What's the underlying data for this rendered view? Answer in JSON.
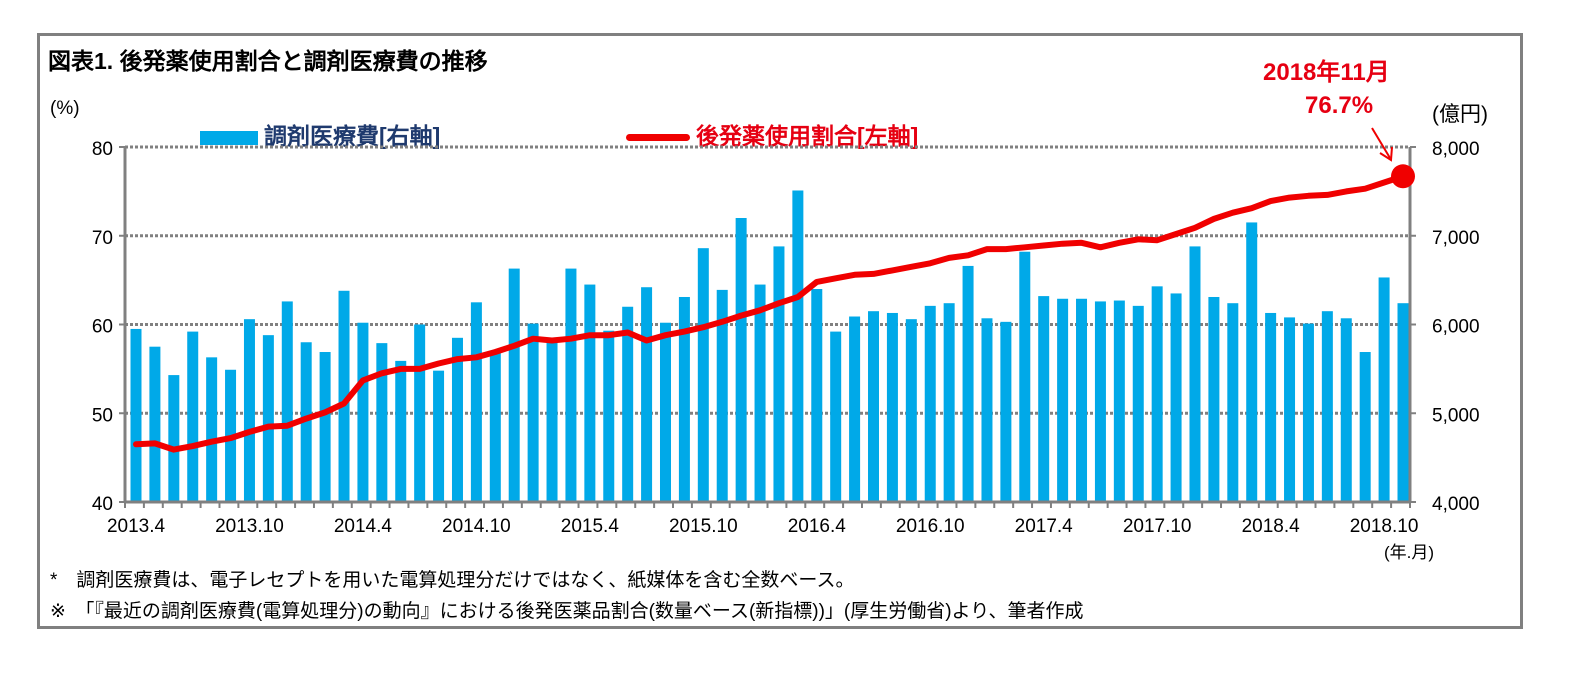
{
  "title": "図表1. 後発薬使用割合と調剤医療費の推移",
  "notes": [
    "*　調剤医療費は、電子レセプトを用いた電算処理分だけではなく、紙媒体を含む全数ベース。",
    "※　「『最近の調剤医療費(電算処理分)の動向』における後発医薬品割合(数量ベース(新指標))」(厚生労働省)より、筆者作成"
  ],
  "annotation": {
    "date": "2018年11月",
    "value": "76.7%"
  },
  "colors": {
    "bar": "#00a9e8",
    "line": "#f00000",
    "bar_legend_text": "#1f3a6e",
    "line_legend_text": "#e60012",
    "grid": "#808080"
  },
  "chart_data": {
    "type": "bar+line",
    "title": "図表1. 後発薬使用割合と調剤医療費の推移",
    "legend_placement": "top",
    "grid": true,
    "xlabel": "(年.月)",
    "ylabel_left": "(%)",
    "ylabel_right": "(億円)",
    "ylim_left": [
      40,
      80
    ],
    "ylim_right": [
      4000,
      8000
    ],
    "yticks_left": [
      "40",
      "50",
      "60",
      "70",
      "80"
    ],
    "yticks_right": [
      "4,000",
      "5,000",
      "6,000",
      "7,000",
      "8,000"
    ],
    "xtick_labels": [
      "2013.4",
      "2013.10",
      "2014.4",
      "2014.10",
      "2015.4",
      "2015.10",
      "2016.4",
      "2016.10",
      "2017.4",
      "2017.10",
      "2018.4",
      "2018.10"
    ],
    "x_start": "2013.4",
    "x_end": "2018.11",
    "series": [
      {
        "name": "調剤医療費[右軸]",
        "type": "bar",
        "axis": "right",
        "values": [
          5950,
          5750,
          5430,
          5920,
          5630,
          5490,
          6060,
          5880,
          6260,
          5800,
          5690,
          6380,
          6020,
          5790,
          5590,
          6000,
          5480,
          5850,
          6250,
          5680,
          6630,
          6010,
          5810,
          6630,
          6450,
          5930,
          6200,
          6420,
          6020,
          6310,
          6860,
          6390,
          7200,
          6450,
          6880,
          7510,
          6400,
          5920,
          6090,
          6150,
          6130,
          6060,
          6210,
          6240,
          6660,
          6070,
          6030,
          6820,
          6320,
          6290,
          6290,
          6260,
          6270,
          6210,
          6430,
          6350,
          6880,
          6310,
          6240,
          7150,
          6130,
          6080,
          6010,
          6150,
          6070,
          5690,
          6530,
          6240
        ]
      },
      {
        "name": "後発薬使用割合[左軸]",
        "type": "line",
        "axis": "left",
        "values": [
          46.5,
          46.6,
          45.9,
          46.3,
          46.8,
          47.2,
          47.9,
          48.5,
          48.6,
          49.4,
          50.1,
          51.1,
          53.7,
          54.5,
          55.0,
          55.0,
          55.6,
          56.1,
          56.3,
          56.9,
          57.6,
          58.4,
          58.2,
          58.4,
          58.8,
          58.8,
          59.1,
          58.2,
          58.8,
          59.2,
          59.7,
          60.3,
          61.0,
          61.6,
          62.4,
          63.1,
          64.8,
          65.2,
          65.6,
          65.7,
          66.1,
          66.5,
          66.9,
          67.5,
          67.8,
          68.5,
          68.5,
          68.7,
          68.9,
          69.1,
          69.2,
          68.7,
          69.2,
          69.6,
          69.5,
          70.2,
          70.9,
          71.9,
          72.6,
          73.1,
          73.9,
          74.3,
          74.5,
          74.6,
          75.0,
          75.3,
          76.0,
          76.7
        ]
      }
    ]
  }
}
